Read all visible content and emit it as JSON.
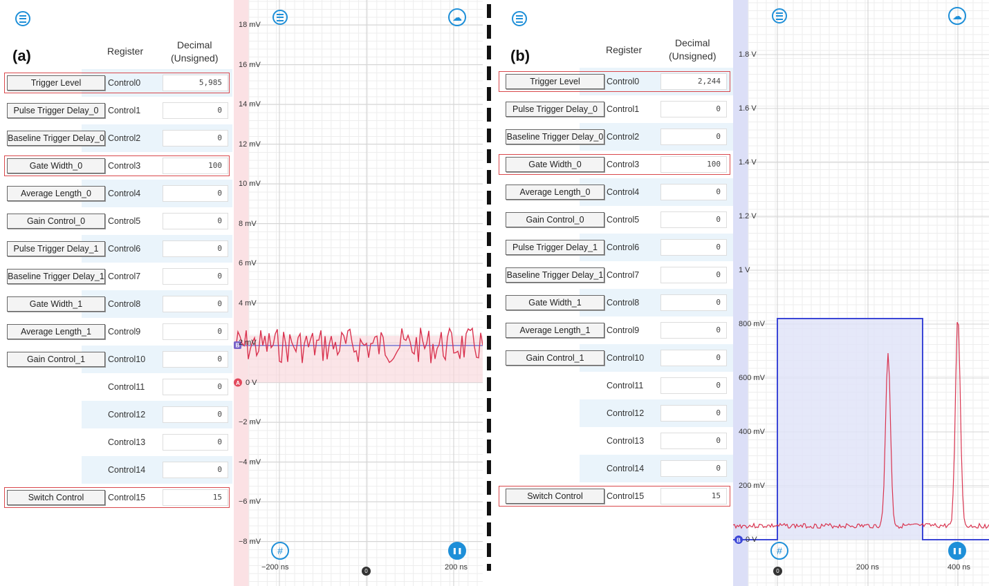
{
  "panel_a": {
    "label": "(a)",
    "headers": {
      "register": "Register",
      "decimal_line1": "Decimal",
      "decimal_line2": "(Unsigned)"
    },
    "rows": [
      {
        "button": "Trigger Level",
        "register": "Control0",
        "value": "5,985",
        "highlight": true
      },
      {
        "button": "Pulse Trigger Delay_0",
        "register": "Control1",
        "value": "0"
      },
      {
        "button": "Baseline Trigger Delay_0",
        "register": "Control2",
        "value": "0"
      },
      {
        "button": "Gate Width_0",
        "register": "Control3",
        "value": "100",
        "highlight": true
      },
      {
        "button": "Average Length_0",
        "register": "Control4",
        "value": "0"
      },
      {
        "button": "Gain Control_0",
        "register": "Control5",
        "value": "0"
      },
      {
        "button": "Pulse Trigger Delay_1",
        "register": "Control6",
        "value": "0"
      },
      {
        "button": "Baseline Trigger Delay_1",
        "register": "Control7",
        "value": "0"
      },
      {
        "button": "Gate Width_1",
        "register": "Control8",
        "value": "0"
      },
      {
        "button": "Average Length_1",
        "register": "Control9",
        "value": "0"
      },
      {
        "button": "Gain Control_1",
        "register": "Control10",
        "value": "0"
      },
      {
        "button": "",
        "register": "Control11",
        "value": "0"
      },
      {
        "button": "",
        "register": "Control12",
        "value": "0"
      },
      {
        "button": "",
        "register": "Control13",
        "value": "0"
      },
      {
        "button": "",
        "register": "Control14",
        "value": "0"
      },
      {
        "button": "Switch Control",
        "register": "Control15",
        "value": "15",
        "highlight": true
      }
    ],
    "scope": {
      "y_labels": [
        "18 mV",
        "16 mV",
        "14 mV",
        "12 mV",
        "10 mV",
        "8 mV",
        "6 mV",
        "4 mV",
        "2 mV",
        "0 V",
        "−2 mV",
        "−4 mV",
        "−6 mV",
        "−8 mV"
      ],
      "x_labels": [
        "−200 ns",
        "0",
        "200 ns"
      ],
      "channel_a_marker": "A",
      "channel_b_marker": "B",
      "trace_color": "#d9334f",
      "threshold_color": "#5a5fcf"
    }
  },
  "panel_b": {
    "label": "(b)",
    "headers": {
      "register": "Register",
      "decimal_line1": "Decimal",
      "decimal_line2": "(Unsigned)"
    },
    "rows": [
      {
        "button": "Trigger Level",
        "register": "Control0",
        "value": "2,244",
        "highlight": true
      },
      {
        "button": "Pulse Trigger Delay_0",
        "register": "Control1",
        "value": "0"
      },
      {
        "button": "Baseline Trigger Delay_0",
        "register": "Control2",
        "value": "0"
      },
      {
        "button": "Gate Width_0",
        "register": "Control3",
        "value": "100",
        "highlight": true
      },
      {
        "button": "Average Length_0",
        "register": "Control4",
        "value": "0"
      },
      {
        "button": "Gain Control_0",
        "register": "Control5",
        "value": "0"
      },
      {
        "button": "Pulse Trigger Delay_1",
        "register": "Control6",
        "value": "0"
      },
      {
        "button": "Baseline Trigger Delay_1",
        "register": "Control7",
        "value": "0"
      },
      {
        "button": "Gate Width_1",
        "register": "Control8",
        "value": "0"
      },
      {
        "button": "Average Length_1",
        "register": "Control9",
        "value": "0"
      },
      {
        "button": "Gain Control_1",
        "register": "Control10",
        "value": "0"
      },
      {
        "button": "",
        "register": "Control11",
        "value": "0"
      },
      {
        "button": "",
        "register": "Control12",
        "value": "0"
      },
      {
        "button": "",
        "register": "Control13",
        "value": "0"
      },
      {
        "button": "",
        "register": "Control14",
        "value": "0"
      },
      {
        "button": "Switch Control",
        "register": "Control15",
        "value": "15",
        "highlight": true
      }
    ],
    "scope": {
      "y_labels": [
        "1.8 V",
        "1.6 V",
        "1.4 V",
        "1.2 V",
        "1 V",
        "800 mV",
        "600 mV",
        "400 mV",
        "200 mV",
        "0 V"
      ],
      "x_labels": [
        "0",
        "200 ns",
        "400 ns"
      ],
      "channel_b_marker": "B",
      "trace_color": "#d9334f",
      "gate_color": "#3a45d6"
    }
  }
}
